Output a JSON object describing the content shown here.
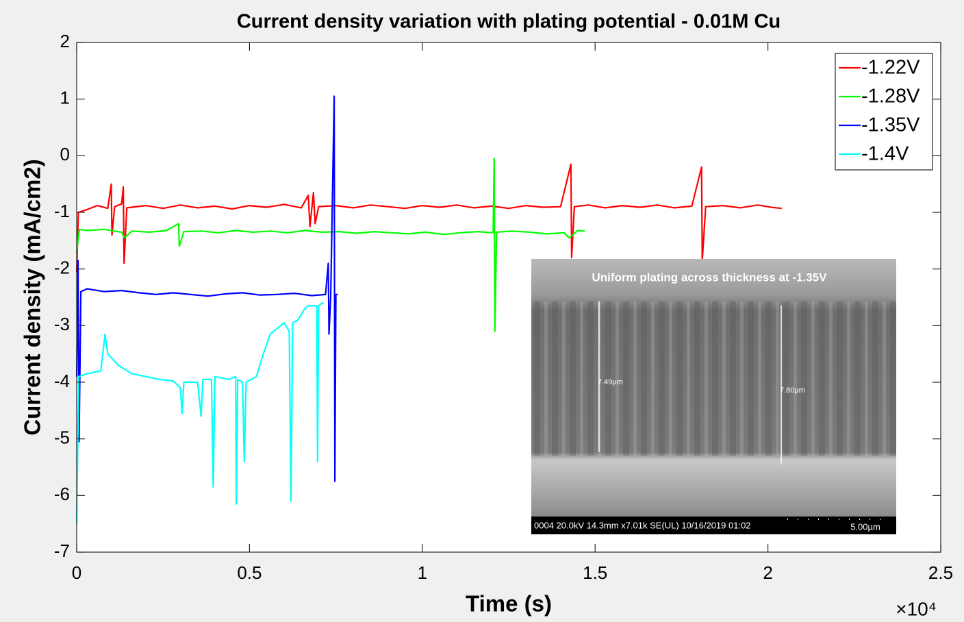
{
  "chart_data": {
    "type": "line",
    "title": "Current density variation with plating potential - 0.01M Cu",
    "xlabel": "Time (s)",
    "ylabel": "Current density (mA/cm2)",
    "x_exponent_label": "×10⁴",
    "xlim": [
      0,
      25000
    ],
    "xticks": [
      0,
      {
        "value": 5000,
        "label": "0.5"
      },
      {
        "value": 10000,
        "label": "1"
      },
      {
        "value": 15000,
        "label": "1.5"
      },
      {
        "value": 20000,
        "label": "2"
      },
      {
        "value": 25000,
        "label": "2.5"
      }
    ],
    "ylim": [
      -7,
      2
    ],
    "yticks": [
      -7,
      -6,
      -5,
      -4,
      -3,
      -2,
      -1,
      0,
      1,
      2
    ],
    "grid": false,
    "legend": "top-right",
    "series": [
      {
        "name": "-1.22V",
        "color": "#ff0000",
        "x": [
          0,
          50,
          300,
          600,
          900,
          1000,
          1020,
          1100,
          1300,
          1350,
          1370,
          1450,
          2000,
          2500,
          3000,
          3500,
          4000,
          4500,
          5000,
          5500,
          6000,
          6500,
          6700,
          6750,
          6850,
          6900,
          7000,
          7500,
          8000,
          8500,
          9000,
          9500,
          10000,
          10500,
          11000,
          11500,
          12000,
          12500,
          13000,
          13500,
          14000,
          14300,
          14320,
          14400,
          14800,
          15300,
          15800,
          16300,
          16800,
          17300,
          17800,
          18080,
          18100,
          18200,
          18700,
          19200,
          19700,
          20100,
          20400
        ],
        "values": [
          -2.05,
          -1.0,
          -0.95,
          -0.88,
          -0.93,
          -0.5,
          -1.4,
          -0.9,
          -0.85,
          -0.55,
          -1.9,
          -0.92,
          -0.88,
          -0.93,
          -0.87,
          -0.92,
          -0.89,
          -0.94,
          -0.88,
          -0.91,
          -0.86,
          -0.92,
          -0.7,
          -1.25,
          -0.65,
          -1.2,
          -0.9,
          -0.88,
          -0.92,
          -0.87,
          -0.9,
          -0.93,
          -0.88,
          -0.91,
          -0.87,
          -0.92,
          -0.89,
          -0.93,
          -0.88,
          -0.91,
          -0.9,
          -0.15,
          -1.8,
          -0.9,
          -0.87,
          -0.92,
          -0.88,
          -0.91,
          -0.87,
          -0.92,
          -0.89,
          -0.2,
          -1.85,
          -0.9,
          -0.88,
          -0.92,
          -0.87,
          -0.91,
          -0.93
        ]
      },
      {
        "name": "-1.28V",
        "color": "#00ff00",
        "x": [
          0,
          80,
          300,
          800,
          1300,
          1380,
          1600,
          2100,
          2600,
          2950,
          2970,
          3100,
          3600,
          4100,
          4600,
          5100,
          5600,
          6100,
          6600,
          7100,
          7600,
          8100,
          8600,
          9100,
          9600,
          10100,
          10600,
          11100,
          11600,
          12050,
          12080,
          12100,
          12150,
          12600,
          13100,
          13600,
          14100,
          14250,
          14500,
          14700
        ],
        "values": [
          -1.7,
          -1.3,
          -1.32,
          -1.3,
          -1.35,
          -1.45,
          -1.33,
          -1.35,
          -1.32,
          -1.2,
          -1.6,
          -1.34,
          -1.33,
          -1.36,
          -1.32,
          -1.35,
          -1.33,
          -1.36,
          -1.32,
          -1.35,
          -1.34,
          -1.37,
          -1.34,
          -1.36,
          -1.38,
          -1.35,
          -1.39,
          -1.36,
          -1.34,
          -1.36,
          -0.05,
          -3.1,
          -1.35,
          -1.33,
          -1.35,
          -1.38,
          -1.36,
          -1.45,
          -1.32,
          -1.33
        ]
      },
      {
        "name": "-1.35V",
        "color": "#0000ff",
        "x": [
          0,
          40,
          70,
          120,
          300,
          800,
          1300,
          1800,
          2300,
          2800,
          3300,
          3800,
          4300,
          4800,
          5300,
          5800,
          6300,
          6800,
          7200,
          7280,
          7300,
          7350,
          7450,
          7470,
          7500,
          7550
        ],
        "values": [
          -3.9,
          -1.85,
          -5.05,
          -2.4,
          -2.35,
          -2.4,
          -2.38,
          -2.42,
          -2.45,
          -2.42,
          -2.45,
          -2.48,
          -2.44,
          -2.42,
          -2.46,
          -2.45,
          -2.43,
          -2.47,
          -2.45,
          -1.9,
          -3.15,
          -2.5,
          1.05,
          -5.75,
          -2.45,
          -2.45
        ]
      },
      {
        "name": "-1.4V",
        "color": "#00ffff",
        "x": [
          0,
          30,
          60,
          300,
          700,
          820,
          900,
          1200,
          1600,
          2000,
          2400,
          2800,
          3000,
          3050,
          3100,
          3500,
          3600,
          3650,
          3900,
          3950,
          4000,
          4400,
          4600,
          4620,
          4660,
          4800,
          4850,
          4900,
          5200,
          5400,
          5600,
          5800,
          6000,
          6150,
          6200,
          6250,
          6400,
          6600,
          6700,
          6950,
          6970,
          7000,
          7100,
          7150
        ],
        "values": [
          -6.5,
          -5.2,
          -3.9,
          -3.85,
          -3.8,
          -3.15,
          -3.5,
          -3.7,
          -3.85,
          -3.9,
          -3.95,
          -3.98,
          -4.1,
          -4.55,
          -4.0,
          -4.0,
          -4.6,
          -3.95,
          -3.95,
          -5.85,
          -3.9,
          -3.95,
          -3.9,
          -6.15,
          -3.95,
          -4.0,
          -5.4,
          -4.0,
          -3.9,
          -3.5,
          -3.15,
          -3.05,
          -2.95,
          -3.1,
          -6.1,
          -2.95,
          -2.9,
          -2.7,
          -2.65,
          -2.65,
          -5.4,
          -2.65,
          -2.6,
          -2.6
        ]
      }
    ]
  },
  "inset": {
    "caption": "Uniform plating across thickness at -1.35V",
    "measure_left": "7.49µm",
    "measure_right": "7.80µm",
    "info_bar": "0004 20.0kV 14.3mm x7.01k SE(UL) 10/16/2019 01:02",
    "scale_bar": "5.00µm"
  }
}
